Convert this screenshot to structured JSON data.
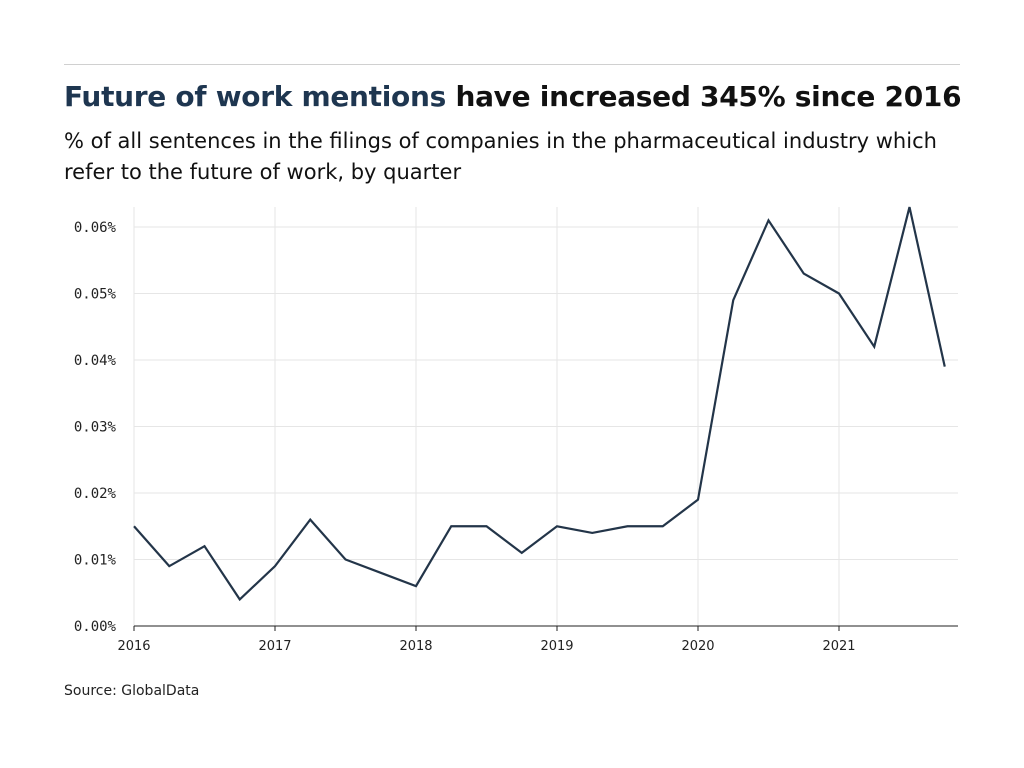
{
  "title": {
    "highlight": "Future of work mentions",
    "rest": " have increased 345% since 2016"
  },
  "subtitle": "% of all sentences in the filings of companies in the pharmaceutical industry which refer to the future of work, by quarter",
  "source": "Source: GlobalData",
  "colors": {
    "line": "#233549",
    "title_highlight": "#1e3650",
    "grid": "#e6e6e6"
  },
  "chart_data": {
    "type": "line",
    "title": "Future of work mentions have increased 345% since 2016",
    "xlabel": "",
    "ylabel": "",
    "ylim": [
      0,
      0.06
    ],
    "xlim": [
      2016,
      2021.85
    ],
    "grid": true,
    "yticks": [
      0,
      0.01,
      0.02,
      0.03,
      0.04,
      0.05,
      0.06
    ],
    "ytick_labels": [
      "0.00%",
      "0.01%",
      "0.02%",
      "0.03%",
      "0.04%",
      "0.05%",
      "0.06%"
    ],
    "xticks": [
      2016,
      2017,
      2018,
      2019,
      2020,
      2021
    ],
    "xtick_labels": [
      "2016",
      "2017",
      "2018",
      "2019",
      "2020",
      "2021"
    ],
    "series": [
      {
        "name": "Future of work mentions (%)",
        "x": [
          2016,
          2016.25,
          2016.5,
          2016.75,
          2017,
          2017.25,
          2017.5,
          2017.75,
          2018,
          2018.25,
          2018.5,
          2018.75,
          2019,
          2019.25,
          2019.5,
          2019.75,
          2020,
          2020.25,
          2020.5,
          2020.75,
          2021,
          2021.25,
          2021.5,
          2021.75
        ],
        "values": [
          0.015,
          0.009,
          0.012,
          0.004,
          0.009,
          0.016,
          0.01,
          0.008,
          0.006,
          0.015,
          0.015,
          0.011,
          0.015,
          0.014,
          0.015,
          0.015,
          0.019,
          0.049,
          0.061,
          0.053,
          0.05,
          0.042,
          0.063,
          0.039
        ]
      }
    ]
  }
}
